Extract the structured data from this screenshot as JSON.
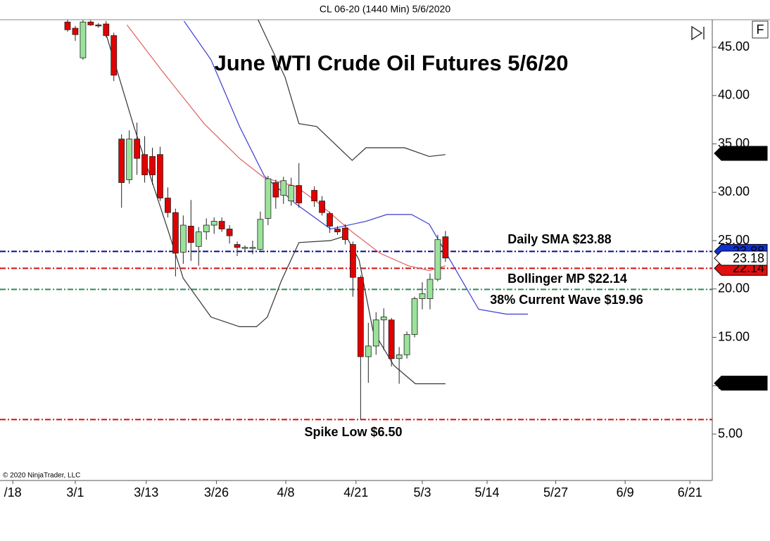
{
  "chart_data": {
    "type": "candlestick",
    "header": "CL 06-20 (1440 Min)  5/6/2020",
    "title": "June WTI Crude Oil Futures 5/6/20",
    "copyright": "© 2020 NinjaTrader, LLC",
    "button": "F",
    "xlim": [
      -8.76,
      83.6
    ],
    "xticks": [
      {
        "value": -7.1,
        "label": "/18"
      },
      {
        "value": 1.0,
        "label": "3/1"
      },
      {
        "value": 10.2,
        "label": "3/13"
      },
      {
        "value": 19.3,
        "label": "3/26"
      },
      {
        "value": 28.3,
        "label": "4/8"
      },
      {
        "value": 37.4,
        "label": "4/21"
      },
      {
        "value": 46.0,
        "label": "5/3"
      },
      {
        "value": 54.4,
        "label": "5/14"
      },
      {
        "value": 63.3,
        "label": "5/27"
      },
      {
        "value": 72.3,
        "label": "6/9"
      },
      {
        "value": 80.7,
        "label": "6/21"
      }
    ],
    "ylim": [
      0.2,
      47.84
    ],
    "yticks": [
      {
        "value": 5,
        "label": "5.00"
      },
      {
        "value": 10,
        "label": "10.00"
      },
      {
        "value": 15,
        "label": "15.00"
      },
      {
        "value": 20,
        "label": "20.00"
      },
      {
        "value": 25,
        "label": "25.00"
      },
      {
        "value": 30,
        "label": "30.00"
      },
      {
        "value": 35,
        "label": "35.00"
      },
      {
        "value": 40,
        "label": "40.00"
      },
      {
        "value": 45,
        "label": "45.00"
      }
    ],
    "up_color": "#9be39b",
    "down_color": "#e00000",
    "candles": {
      "x": [
        0,
        1,
        2,
        3,
        4,
        5,
        6,
        7,
        8,
        9,
        10,
        11,
        12,
        13,
        14,
        15,
        16,
        17,
        18,
        19,
        20,
        21,
        22,
        23,
        24,
        25,
        26,
        27,
        28,
        29,
        30,
        32,
        33,
        34,
        35,
        36,
        37,
        38,
        39,
        40,
        41,
        42,
        43,
        44,
        45,
        46,
        47,
        48,
        49
      ],
      "open": [
        47.6,
        46.96,
        43.9,
        47.6,
        47.3,
        47.4,
        46.2,
        35.5,
        31.3,
        35.5,
        33.9,
        33.7,
        33.9,
        29.4,
        27.9,
        23.8,
        26.5,
        24.4,
        25.9,
        26.6,
        27.0,
        26.2,
        24.6,
        24.3,
        24.3,
        24.1,
        27.3,
        31.0,
        29.7,
        29.1,
        30.7,
        30.2,
        29.1,
        27.8,
        26.2,
        26.3,
        24.6,
        21.2,
        13.0,
        14.1,
        16.8,
        16.8,
        12.8,
        13.2,
        15.3,
        19.0,
        19.0,
        21.0,
        25.4
      ],
      "high": [
        47.9,
        47.2,
        47.8,
        47.8,
        47.5,
        47.7,
        46.5,
        36.0,
        36.4,
        37.2,
        35.8,
        34.6,
        34.7,
        30.5,
        28.3,
        27.6,
        29.2,
        26.4,
        27.3,
        27.4,
        27.4,
        26.6,
        24.9,
        24.5,
        25.0,
        28.0,
        31.7,
        31.3,
        31.6,
        31.5,
        33.0,
        30.6,
        29.6,
        28.0,
        26.5,
        26.7,
        24.9,
        21.4,
        16.5,
        17.6,
        18.0,
        17.0,
        14.0,
        15.6,
        19.2,
        20.7,
        21.6,
        25.6,
        26.0
      ],
      "low": [
        46.6,
        45.65,
        43.7,
        47.2,
        47.0,
        46.0,
        41.5,
        28.4,
        30.9,
        31.8,
        31.0,
        30.8,
        29.1,
        27.4,
        21.3,
        22.6,
        22.9,
        22.4,
        25.1,
        25.7,
        25.9,
        24.7,
        23.4,
        23.9,
        23.6,
        24.0,
        26.6,
        28.3,
        28.8,
        28.6,
        28.4,
        28.5,
        27.6,
        25.8,
        25.6,
        24.6,
        19.2,
        6.5,
        10.3,
        13.2,
        13.7,
        12.0,
        10.2,
        12.8,
        15.0,
        17.9,
        17.9,
        20.8,
        22.8
      ],
      "close": [
        46.8,
        46.3,
        47.6,
        47.3,
        47.2,
        46.2,
        42.1,
        31.0,
        35.5,
        33.5,
        31.8,
        31.8,
        29.4,
        27.9,
        23.7,
        26.6,
        24.8,
        25.9,
        26.6,
        27.0,
        26.2,
        25.5,
        24.3,
        24.3,
        24.3,
        27.2,
        31.4,
        29.5,
        31.2,
        30.7,
        28.9,
        29.1,
        27.9,
        26.5,
        25.9,
        25.1,
        21.2,
        13.0,
        14.1,
        16.8,
        17.1,
        12.8,
        13.2,
        15.3,
        19.0,
        19.5,
        21.0,
        25.1,
        23.2
      ]
    },
    "lines": [
      {
        "color": "#333333",
        "x": [
          24.7,
          28.2,
          30.0,
          32.3,
          36.9,
          38.7,
          43.7,
          46.9,
          49
        ],
        "values": [
          47.84,
          41.9,
          37.1,
          36.8,
          33.3,
          34.6,
          34.6,
          33.7,
          33.9
        ]
      },
      {
        "color": "#333333",
        "x": [
          4.9,
          8.6,
          13.1,
          15.0,
          18.6,
          22.3,
          24.5,
          25.9,
          27.7,
          30.0,
          34.1,
          36.1,
          37.8,
          39.6,
          42.3,
          45.1,
          49
        ],
        "values": [
          46.6,
          36.8,
          25.9,
          21.1,
          17.1,
          16.1,
          16.1,
          17.1,
          20.8,
          24.8,
          25.0,
          25.5,
          23.0,
          15.7,
          12.1,
          10.2,
          10.2
        ]
      },
      {
        "color": "#e06060",
        "x": [
          7.7,
          12.2,
          17.7,
          22.3,
          25.5,
          29.6,
          32.2,
          36.9,
          40.5,
          44.2,
          46.9,
          49
        ],
        "values": [
          47.3,
          42.6,
          37.1,
          33.5,
          31.5,
          30.6,
          29.1,
          25.9,
          23.7,
          22.4,
          21.9,
          22.4
        ]
      },
      {
        "color": "#3a3ad0",
        "x": [
          15.1,
          18.6,
          22.3,
          25.5,
          29.6,
          34.1,
          38.7,
          41.4,
          44.6,
          46.9,
          49.6,
          53.3,
          56.9,
          59.7
        ],
        "values": [
          47.7,
          43.7,
          36.8,
          31.7,
          28.8,
          26.2,
          27.0,
          27.7,
          27.7,
          26.7,
          23.0,
          17.9,
          17.4,
          17.4
        ]
      }
    ],
    "hlines": [
      {
        "text": "Daily SMA $23.88",
        "value": 23.88,
        "color": "#0a0a90"
      },
      {
        "text": "Bollinger MP $22.14",
        "value": 22.14,
        "color": "#d01010"
      },
      {
        "text": "38% Current Wave $19.96",
        "value": 19.96,
        "color": "#2e8b57"
      },
      {
        "text": "Spike Low $6.50",
        "value": 6.5,
        "color": "#d01010"
      }
    ],
    "price_tags": [
      {
        "value": 34.02,
        "fill": "#000000",
        "text_color": "#ffffff"
      },
      {
        "value": 23.88,
        "fill": "#1030d0",
        "text_color": "#ffffff"
      },
      {
        "value": 22.14,
        "fill": "#e01010",
        "text_color": "#ffffff"
      },
      {
        "value": 23.18,
        "fill": "#ffffff",
        "text_color": "#000000"
      },
      {
        "value": 10.26,
        "fill": "#000000",
        "text_color": "#ffffff"
      }
    ]
  }
}
